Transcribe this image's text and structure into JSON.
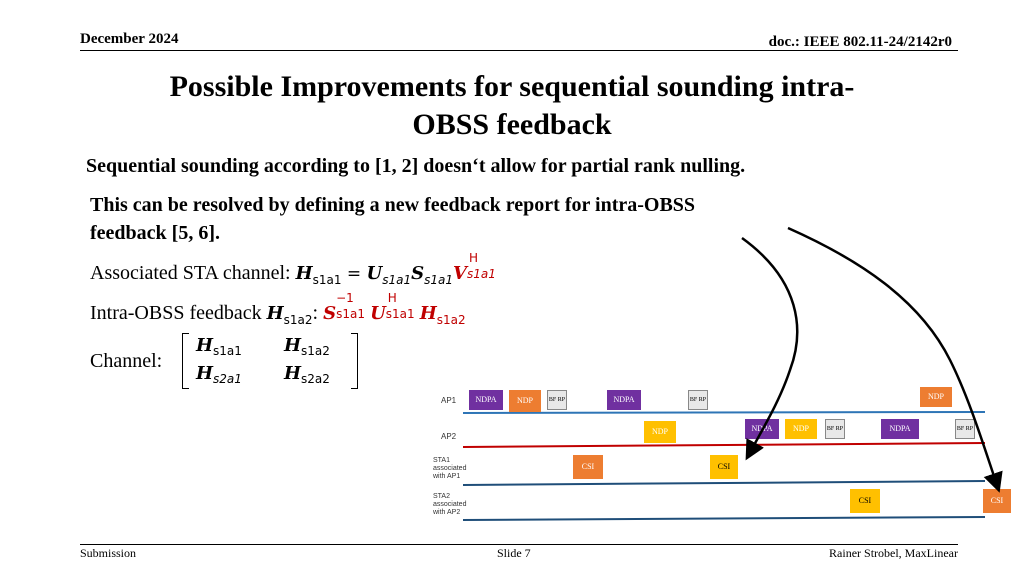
{
  "header": {
    "date": "December 2024",
    "doc": "doc.: IEEE 802.11-24/2142r0"
  },
  "title": {
    "line1": "Possible Improvements for sequential sounding intra-",
    "line2": "OBSS feedback"
  },
  "body": {
    "line1": "Sequential sounding according to [1, 2] doesn‘t allow for partial rank nulling.",
    "line2": "This can be resolved by defining a new feedback report for intra-OBSS",
    "line3": "feedback [5, 6].",
    "assoc_label": "Associated STA channel: ",
    "intra_label": "Intra-OBSS feedback ",
    "channel_label": "Channel: "
  },
  "math": {
    "H": "H",
    "U": "U",
    "S": "S",
    "V": "V",
    "s1a1": "s1a1",
    "s1a2": "s1a2",
    "s2a1": "s2a1",
    "s2a2": "s2a2",
    "eq": " = ",
    "colon": ": ",
    "sup_h": "H",
    "sup_inv": "−1"
  },
  "diagram": {
    "rows": {
      "ap1": "AP1",
      "ap2": "AP2",
      "sta1": "STA1 associated with AP1",
      "sta2": "STA2 associated with AP2"
    },
    "boxes": {
      "ndpa": "NDPA",
      "ndp": "NDP",
      "bfrp": "BF RP",
      "csi": "CSI"
    }
  },
  "colors": {
    "ndpa": "#7030a0",
    "ndp": "#ed7d31",
    "ndp_yellow": "#ffc000",
    "bfrp": "#d9d9d9",
    "line": "#2e75b6",
    "red": "#c00000"
  },
  "footer": {
    "left": "Submission",
    "center": "Slide 7",
    "right": "Rainer Strobel, MaxLinear"
  }
}
